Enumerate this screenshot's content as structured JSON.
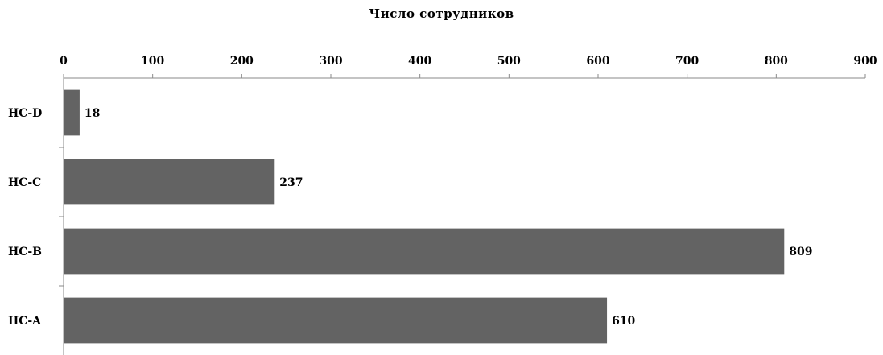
{
  "chart_data": {
    "type": "bar",
    "orientation": "horizontal",
    "title": "Число сотрудников",
    "xlabel": "",
    "ylabel": "",
    "categories": [
      "HC-D",
      "HC-C",
      "HC-B",
      "HC-A"
    ],
    "values": [
      18,
      237,
      809,
      610
    ],
    "xlim": [
      0,
      900
    ],
    "x_ticks": [
      0,
      100,
      200,
      300,
      400,
      500,
      600,
      700,
      800,
      900
    ],
    "x_axis_position": "top",
    "data_labels": [
      "18",
      "237",
      "809",
      "610"
    ],
    "grid": false,
    "legend": "none",
    "bar_color": "#636363"
  }
}
